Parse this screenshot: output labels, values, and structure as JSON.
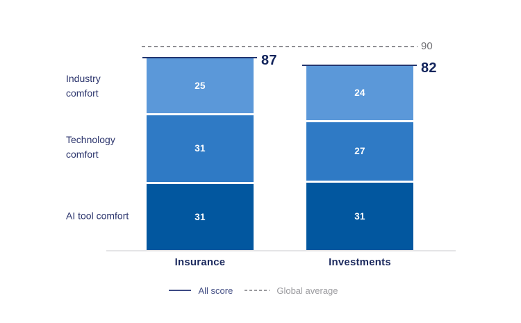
{
  "chart_data": {
    "type": "bar",
    "stacked": true,
    "title": "",
    "categories": [
      "Insurance",
      "Investments"
    ],
    "series": [
      {
        "name": "Industry comfort",
        "values": [
          25,
          24
        ]
      },
      {
        "name": "Technology comfort",
        "values": [
          31,
          27
        ]
      },
      {
        "name": "AI tool comfort",
        "values": [
          31,
          31
        ]
      }
    ],
    "totals": [
      87,
      82
    ],
    "global_average": 90,
    "ylim": [
      0,
      90
    ],
    "grid": false,
    "legend_position": "bottom",
    "legend": [
      {
        "label": "All score",
        "style": "solid"
      },
      {
        "label": "Global average",
        "style": "dashed"
      }
    ],
    "colors": {
      "segment_industry_comfort": "#5b98d9",
      "segment_technology_comfort": "#2f7ac5",
      "segment_ai_tool_comfort": "#02579f",
      "total_line_navy": "#22356f",
      "navy_text": "#13255c",
      "gray_text": "#6f6f73",
      "axis_line_gray": "#e4e4e6"
    }
  }
}
